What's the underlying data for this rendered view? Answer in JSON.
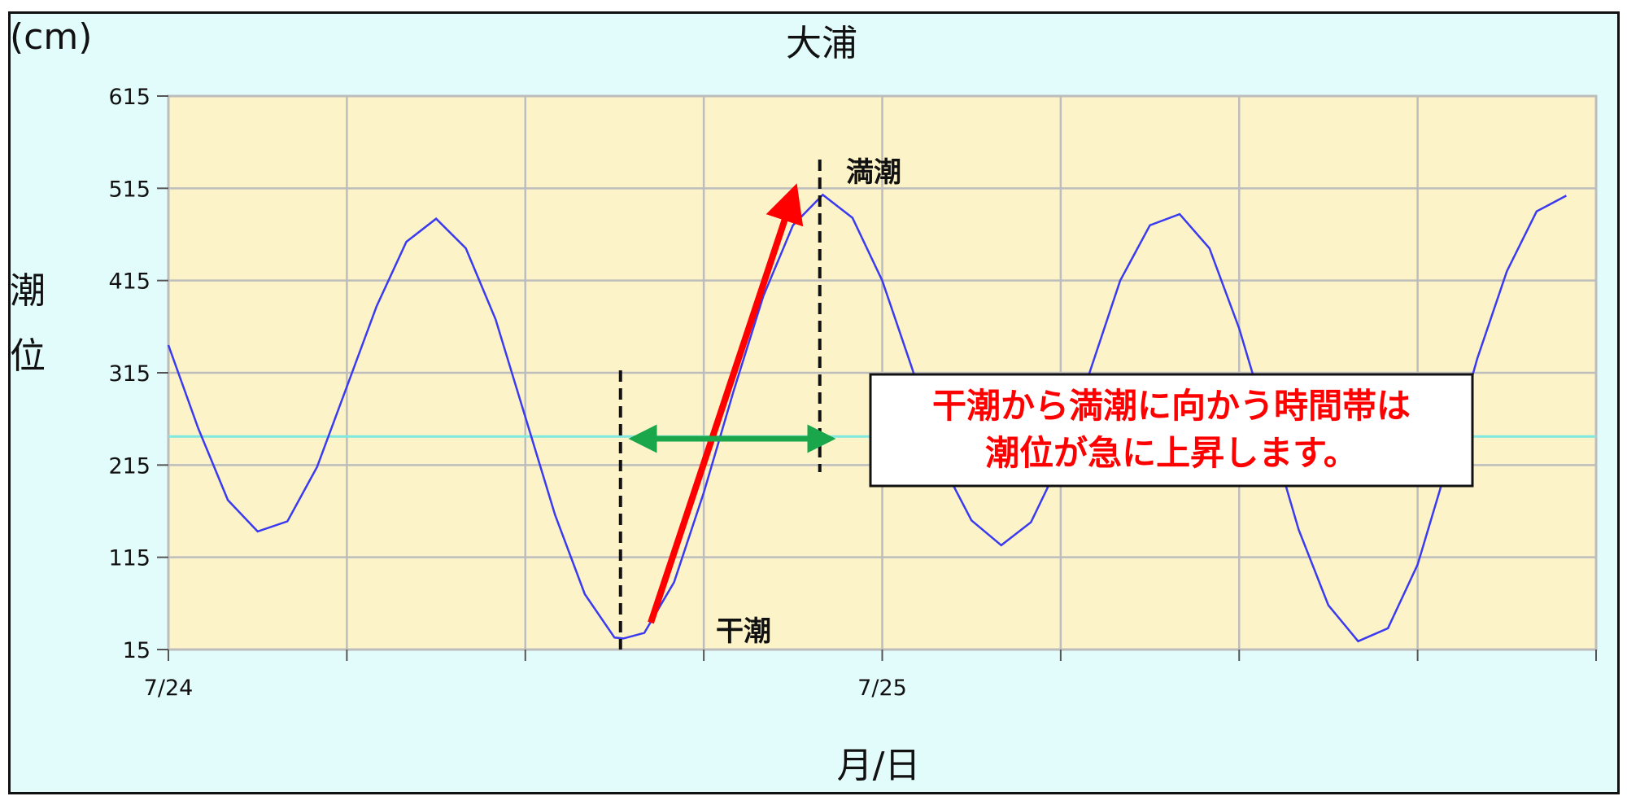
{
  "chart_data": {
    "type": "line",
    "title": "大浦",
    "ylabel": "潮位",
    "yunit": "(cm)",
    "xlabel": "月/日",
    "ylim": [
      15,
      615
    ],
    "yticks": [
      15,
      115,
      215,
      315,
      415,
      515,
      615
    ],
    "xlim": [
      0,
      48
    ],
    "xticks": [
      {
        "x": 0,
        "label": "7/24"
      },
      {
        "x": 6,
        "label": ""
      },
      {
        "x": 12,
        "label": ""
      },
      {
        "x": 18,
        "label": ""
      },
      {
        "x": 24,
        "label": "7/25"
      },
      {
        "x": 30,
        "label": ""
      },
      {
        "x": 36,
        "label": ""
      },
      {
        "x": 42,
        "label": ""
      },
      {
        "x": 48,
        "label": ""
      }
    ],
    "grid": true,
    "series": [
      {
        "color": "#3a3af0",
        "x": [
          0,
          1,
          2,
          3,
          4,
          5,
          6,
          7,
          8,
          9,
          10,
          11,
          12,
          13,
          14,
          15,
          15.3,
          16,
          17,
          18,
          19,
          20,
          21,
          22,
          23,
          24,
          25,
          26,
          27,
          28,
          29,
          30,
          31,
          32,
          33,
          34,
          35,
          36,
          37,
          38,
          39,
          40,
          41,
          42,
          43,
          44,
          45,
          46,
          47
        ],
        "y": [
          345,
          255,
          177,
          143,
          154,
          213,
          300,
          387,
          457,
          482,
          450,
          373,
          267,
          161,
          75,
          28,
          27,
          33,
          88,
          185,
          295,
          398,
          475,
          508,
          483,
          415,
          320,
          217,
          155,
          128,
          153,
          220,
          318,
          415,
          475,
          487,
          450,
          363,
          255,
          145,
          63,
          24,
          38,
          107,
          215,
          330,
          425,
          490,
          507
        ]
      }
    ],
    "reference_line": {
      "y": 246,
      "color": "#7fe8e0"
    },
    "annotations": {
      "low_tide_label": "干潮",
      "high_tide_label": "満潮",
      "callout_line1": "干潮から満潮に向かう時間帯は",
      "callout_line2": "潮位が急に上昇します。"
    }
  }
}
